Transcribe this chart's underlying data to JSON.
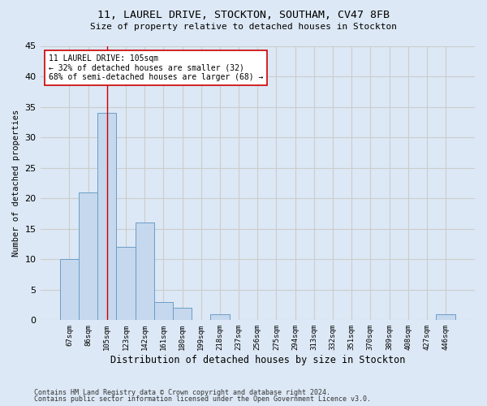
{
  "title_line1": "11, LAUREL DRIVE, STOCKTON, SOUTHAM, CV47 8FB",
  "title_line2": "Size of property relative to detached houses in Stockton",
  "xlabel": "Distribution of detached houses by size in Stockton",
  "ylabel": "Number of detached properties",
  "categories": [
    "67sqm",
    "86sqm",
    "105sqm",
    "123sqm",
    "142sqm",
    "161sqm",
    "180sqm",
    "199sqm",
    "218sqm",
    "237sqm",
    "256sqm",
    "275sqm",
    "294sqm",
    "313sqm",
    "332sqm",
    "351sqm",
    "370sqm",
    "389sqm",
    "408sqm",
    "427sqm",
    "446sqm"
  ],
  "values": [
    10,
    21,
    34,
    12,
    16,
    3,
    2,
    0,
    1,
    0,
    0,
    0,
    0,
    0,
    0,
    0,
    0,
    0,
    0,
    0,
    1
  ],
  "bar_color": "#c5d8ed",
  "bar_edge_color": "#6a9dc8",
  "vline_x_idx": 2,
  "vline_color": "#cc0000",
  "annotation_text_line1": "11 LAUREL DRIVE: 105sqm",
  "annotation_text_line2": "← 32% of detached houses are smaller (32)",
  "annotation_text_line3": "68% of semi-detached houses are larger (68) →",
  "annotation_box_color": "#ffffff",
  "annotation_box_edge_color": "#cc0000",
  "ylim": [
    0,
    45
  ],
  "yticks": [
    0,
    5,
    10,
    15,
    20,
    25,
    30,
    35,
    40,
    45
  ],
  "grid_color": "#cccccc",
  "bg_color": "#dce8f5",
  "footer_line1": "Contains HM Land Registry data © Crown copyright and database right 2024.",
  "footer_line2": "Contains public sector information licensed under the Open Government Licence v3.0."
}
